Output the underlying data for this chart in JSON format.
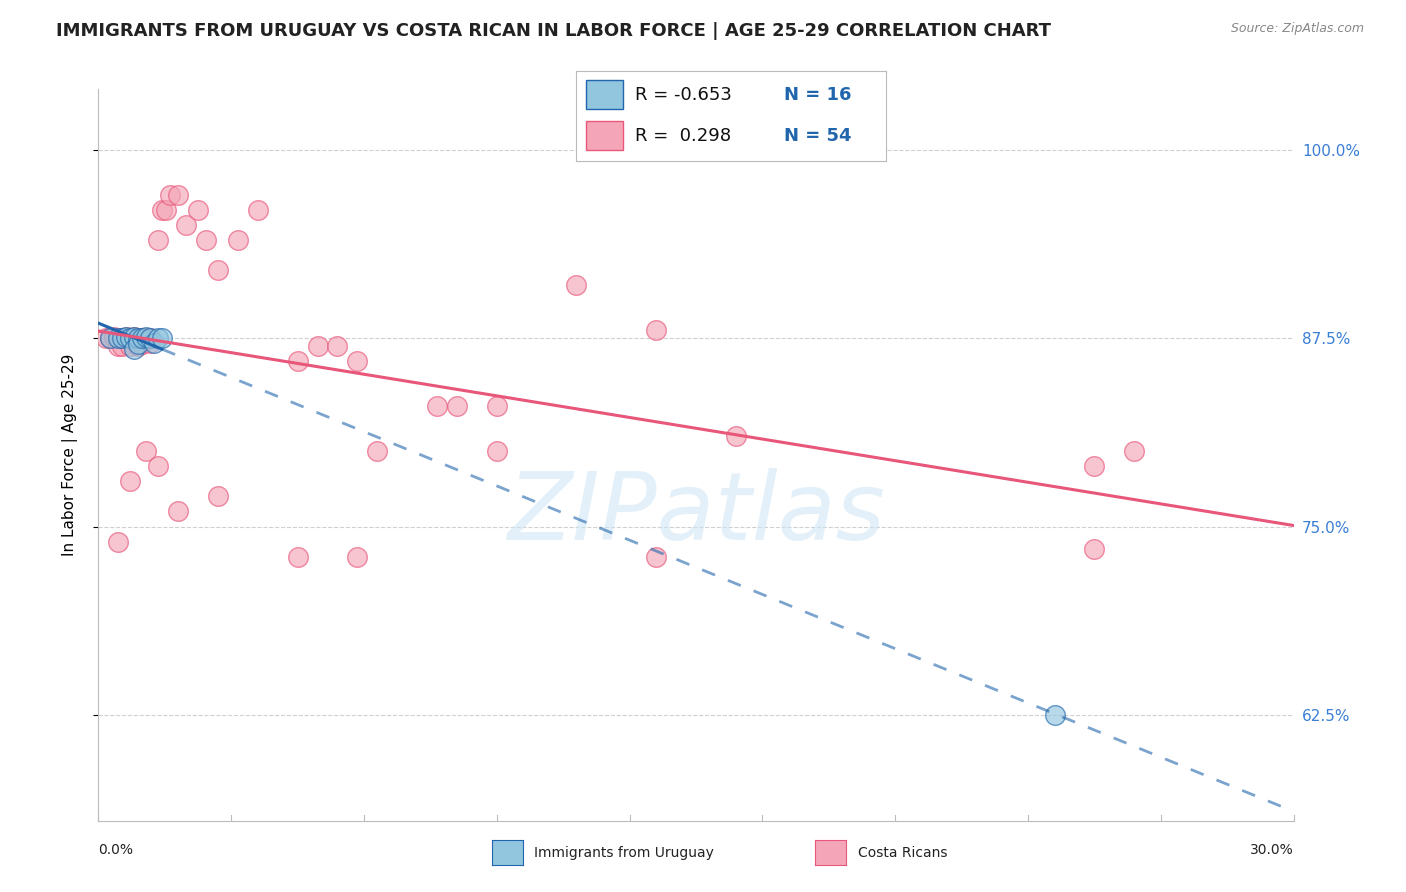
{
  "title": "IMMIGRANTS FROM URUGUAY VS COSTA RICAN IN LABOR FORCE | AGE 25-29 CORRELATION CHART",
  "source": "Source: ZipAtlas.com",
  "ylabel": "In Labor Force | Age 25-29",
  "ytick_labels": [
    "100.0%",
    "87.5%",
    "75.0%",
    "62.5%"
  ],
  "ytick_values": [
    1.0,
    0.875,
    0.75,
    0.625
  ],
  "xlim": [
    0.0,
    0.3
  ],
  "ylim": [
    0.555,
    1.04
  ],
  "watermark": "ZIPatlas",
  "legend_r_uruguay": "-0.653",
  "legend_n_uruguay": "16",
  "legend_r_costarican": "0.298",
  "legend_n_costarican": "54",
  "color_uruguay": "#92c5de",
  "color_costarican": "#f4a6b8",
  "line_color_uruguay": "#2166ac",
  "line_color_costarican": "#e8577a",
  "uruguay_scatter_x": [
    0.003,
    0.005,
    0.006,
    0.007,
    0.008,
    0.009,
    0.009,
    0.01,
    0.01,
    0.011,
    0.012,
    0.013,
    0.014,
    0.015,
    0.016,
    0.24
  ],
  "uruguay_scatter_y": [
    0.875,
    0.875,
    0.875,
    0.876,
    0.875,
    0.876,
    0.868,
    0.875,
    0.871,
    0.875,
    0.876,
    0.875,
    0.872,
    0.875,
    0.875,
    0.625
  ],
  "costarican_scatter_x": [
    0.002,
    0.003,
    0.004,
    0.005,
    0.005,
    0.006,
    0.006,
    0.007,
    0.008,
    0.008,
    0.009,
    0.009,
    0.01,
    0.01,
    0.011,
    0.011,
    0.012,
    0.013,
    0.013,
    0.015,
    0.016,
    0.017,
    0.018,
    0.02,
    0.022,
    0.025,
    0.027,
    0.03,
    0.035,
    0.04,
    0.05,
    0.055,
    0.06,
    0.065,
    0.07,
    0.085,
    0.09,
    0.1,
    0.12,
    0.14,
    0.16,
    0.25,
    0.26,
    0.005,
    0.008,
    0.012,
    0.015,
    0.02,
    0.03,
    0.05,
    0.065,
    0.1,
    0.14,
    0.25
  ],
  "costarican_scatter_y": [
    0.875,
    0.875,
    0.876,
    0.875,
    0.87,
    0.875,
    0.87,
    0.876,
    0.875,
    0.87,
    0.875,
    0.876,
    0.875,
    0.87,
    0.875,
    0.871,
    0.875,
    0.872,
    0.875,
    0.94,
    0.96,
    0.96,
    0.97,
    0.97,
    0.95,
    0.96,
    0.94,
    0.92,
    0.94,
    0.96,
    0.86,
    0.87,
    0.87,
    0.86,
    0.8,
    0.83,
    0.83,
    0.83,
    0.91,
    0.88,
    0.81,
    0.79,
    0.8,
    0.74,
    0.78,
    0.8,
    0.79,
    0.76,
    0.77,
    0.73,
    0.73,
    0.8,
    0.73,
    0.735
  ],
  "grid_color": "#d0d0d0",
  "bg_color": "#ffffff",
  "title_fontsize": 13,
  "axis_label_fontsize": 11,
  "tick_fontsize": 11,
  "legend_fontsize": 13
}
